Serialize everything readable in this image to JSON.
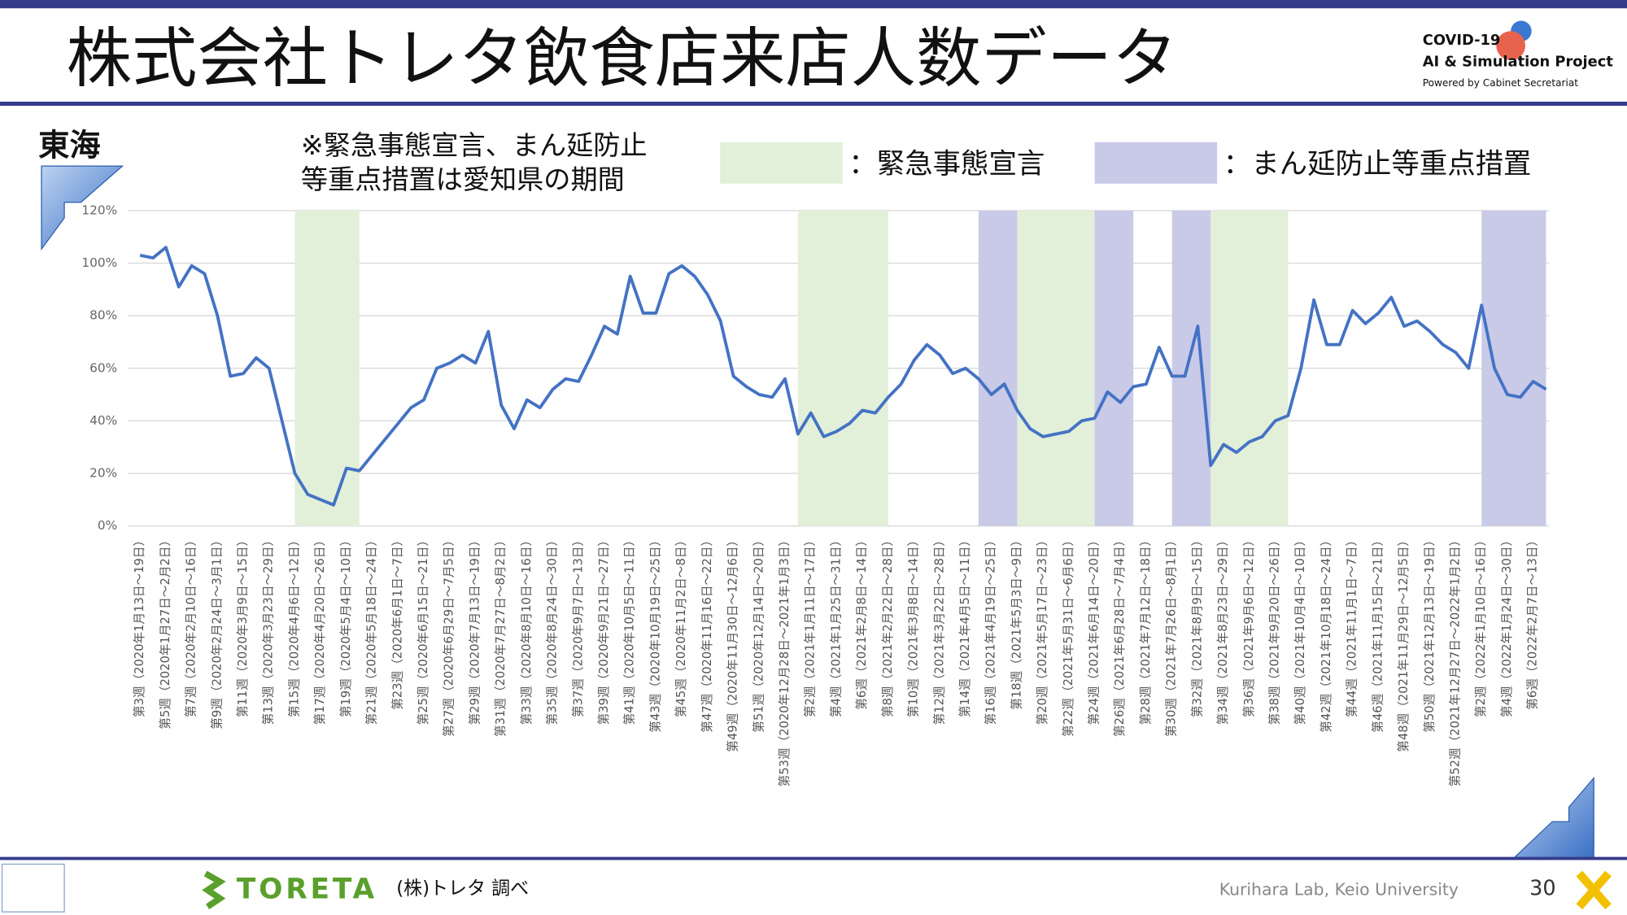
{
  "header": {
    "title": "株式会社トレタ飲食店来店人数データ",
    "logo": [
      "COVID-19",
      "AI & Simulation Project",
      "Powered by Cabinet Secretariat"
    ]
  },
  "region": "東海",
  "note": [
    "※緊急事態宣言、まん延防止",
    "等重点措置は愛知県の期間"
  ],
  "footer": {
    "brand": "TORETA",
    "source": "(株)トレタ 調べ",
    "lab": "Kurihara Lab, Keio University",
    "page": "30"
  },
  "chart_data": {
    "type": "line",
    "color": "#4472c4",
    "grid": true,
    "ylim": [
      0,
      120
    ],
    "yticks": [
      {
        "value": 0,
        "label": "0%"
      },
      {
        "value": 20,
        "label": "20%"
      },
      {
        "value": 40,
        "label": "40%"
      },
      {
        "value": 60,
        "label": "60%"
      },
      {
        "value": 80,
        "label": "80%"
      },
      {
        "value": 100,
        "label": "100%"
      },
      {
        "value": 120,
        "label": "120%"
      }
    ],
    "legend": [
      {
        "label": "：緊急事態宣言",
        "color": "#e2efd9"
      },
      {
        "label": "：まん延防止等重点措置",
        "color": "#c9cae8"
      }
    ],
    "spans": [
      {
        "legend": 0,
        "from": 12,
        "to": 17
      },
      {
        "legend": 0,
        "from": 51,
        "to": 58
      },
      {
        "legend": 1,
        "from": 65,
        "to": 68
      },
      {
        "legend": 0,
        "from": 68,
        "to": 74
      },
      {
        "legend": 1,
        "from": 74,
        "to": 77
      },
      {
        "legend": 1,
        "from": 80,
        "to": 83
      },
      {
        "legend": 0,
        "from": 83,
        "to": 89
      },
      {
        "legend": 1,
        "from": 104,
        "to": 109
      }
    ],
    "categories": [
      "第3週（2020年1月13日～19日）",
      null,
      "第5週（2020年1月27日～2月2日）",
      null,
      "第7週（2020年2月10日～16日）",
      null,
      "第9週（2020年2月24日～3月1日）",
      null,
      "第11週（2020年3月9日～15日）",
      null,
      "第13週（2020年3月23日～29日）",
      null,
      "第15週（2020年4月6日～12日）",
      null,
      "第17週（2020年4月20日～26日）",
      null,
      "第19週（2020年5月4日～10日）",
      null,
      "第21週（2020年5月18日～24日）",
      null,
      "第23週（2020年6月1日～7日）",
      null,
      "第25週（2020年6月15日～21日）",
      null,
      "第27週（2020年6月29日～7月5日）",
      null,
      "第29週（2020年7月13日～19日）",
      null,
      "第31週（2020年7月27日～8月2日）",
      null,
      "第33週（2020年8月10日～16日）",
      null,
      "第35週（2020年8月24日～30日）",
      null,
      "第37週（2020年9月7日～13日）",
      null,
      "第39週（2020年9月21日～27日）",
      null,
      "第41週（2020年10月5日～11日）",
      null,
      "第43週（2020年10月19日～25日）",
      null,
      "第45週（2020年11月2日～8日）",
      null,
      "第47週（2020年11月16日～22日）",
      null,
      "第49週（2020年11月30日～12月6日）",
      null,
      "第51週（2020年12月14日～20日）",
      null,
      "第53週（2020年12月28日～2021年1月3日）",
      null,
      "第2週（2021年1月11日～17日）",
      null,
      "第4週（2021年1月25日～31日）",
      null,
      "第6週（2021年2月8日～14日）",
      null,
      "第8週（2021年2月22日～28日）",
      null,
      "第10週（2021年3月8日～14日）",
      null,
      "第12週（2021年3月22日～28日）",
      null,
      "第14週（2021年4月5日～11日）",
      null,
      "第16週（2021年4月19日～25日）",
      null,
      "第18週（2021年5月3日～9日）",
      null,
      "第20週（2021年5月17日～23日）",
      null,
      "第22週（2021年5月31日～6月6日）",
      null,
      "第24週（2021年6月14日～20日）",
      null,
      "第26週（2021年6月28日～7月4日）",
      null,
      "第28週（2021年7月12日～18日）",
      null,
      "第30週（2021年7月26日～8月1日）",
      null,
      "第32週（2021年8月9日～15日）",
      null,
      "第34週（2021年8月23日～29日）",
      null,
      "第36週（2021年9月6日～12日）",
      null,
      "第38週（2021年9月20日～26日）",
      null,
      "第40週（2021年10月4日～10日）",
      null,
      "第42週（2021年10月18日～24日）",
      null,
      "第44週（2021年11月1日～7日）",
      null,
      "第46週（2021年11月15日～21日）",
      null,
      "第48週（2021年11月29日～12月5日）",
      null,
      "第50週（2021年12月13日～19日）",
      null,
      "第52週（2021年12月27日～2022年1月2日）",
      null,
      "第2週（2022年1月10日～16日）",
      null,
      "第4週（2022年1月24日～30日）",
      null,
      "第6週（2022年2月7日～13日）",
      null
    ],
    "values": [
      103,
      102,
      106,
      91,
      99,
      96,
      80,
      57,
      58,
      64,
      60,
      40,
      20,
      12,
      10,
      8,
      22,
      21,
      27,
      33,
      39,
      45,
      48,
      60,
      62,
      65,
      62,
      74,
      46,
      37,
      48,
      45,
      52,
      56,
      55,
      65,
      76,
      73,
      95,
      81,
      81,
      96,
      99,
      95,
      88,
      78,
      57,
      53,
      50,
      49,
      56,
      35,
      43,
      34,
      36,
      39,
      44,
      43,
      49,
      54,
      63,
      69,
      65,
      58,
      60,
      56,
      50,
      54,
      44,
      37,
      34,
      35,
      36,
      40,
      41,
      51,
      47,
      53,
      54,
      68,
      57,
      57,
      76,
      23,
      31,
      28,
      32,
      34,
      40,
      42,
      60,
      86,
      69,
      69,
      82,
      77,
      81,
      87,
      76,
      78,
      74,
      69,
      66,
      60,
      84,
      60,
      50,
      49,
      55,
      52
    ]
  }
}
